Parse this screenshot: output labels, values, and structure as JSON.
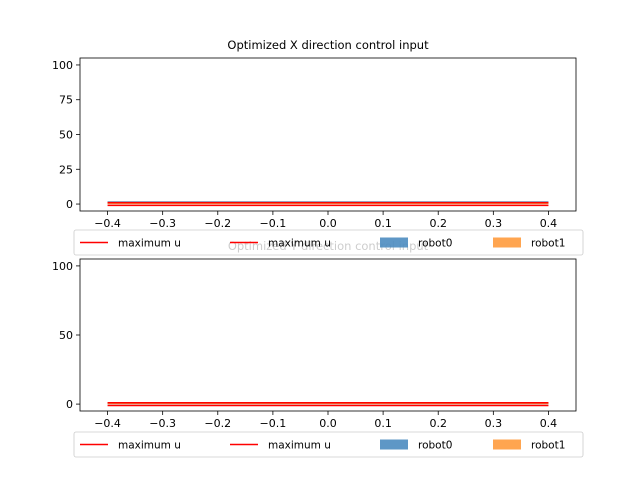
{
  "colors": {
    "maximum_u": "#ff0000",
    "robot0": "#4c8cc0",
    "robot1": "#ff9b3d"
  },
  "chart_data": [
    {
      "type": "bar",
      "title": "Optimized X direction control input",
      "xlim": [
        -0.45,
        0.45
      ],
      "ylim": [
        -5,
        105
      ],
      "xticks": [
        "−0.4",
        "−0.3",
        "−0.2",
        "−0.1",
        "0.0",
        "0.1",
        "0.2",
        "0.3",
        "0.4"
      ],
      "xtick_values": [
        -0.4,
        -0.3,
        -0.2,
        -0.1,
        0.0,
        0.1,
        0.2,
        0.3,
        0.4
      ],
      "yticks": [
        "0",
        "25",
        "50",
        "75",
        "100"
      ],
      "ytick_values": [
        0,
        25,
        50,
        75,
        100
      ],
      "legend": [
        "maximum u",
        "maximum u",
        "robot0",
        "robot1"
      ],
      "series": [
        {
          "name": "maximum u",
          "kind": "line",
          "x": [
            -0.4,
            0.4
          ],
          "y": [
            1,
            1
          ]
        },
        {
          "name": "maximum u",
          "kind": "line",
          "x": [
            -0.4,
            0.4
          ],
          "y": [
            -1,
            -1
          ]
        },
        {
          "name": "robot0",
          "kind": "bar",
          "x0": -0.4,
          "x1": 0.4,
          "value": 2
        },
        {
          "name": "robot1",
          "kind": "bar",
          "x0": -0.4,
          "x1": 0.4,
          "value": 1
        }
      ]
    },
    {
      "type": "bar",
      "title": "Optimized Y direction control input",
      "xlim": [
        -0.45,
        0.45
      ],
      "ylim": [
        -5,
        105
      ],
      "xticks": [
        "−0.4",
        "−0.3",
        "−0.2",
        "−0.1",
        "0.0",
        "0.1",
        "0.2",
        "0.3",
        "0.4"
      ],
      "xtick_values": [
        -0.4,
        -0.3,
        -0.2,
        -0.1,
        0.0,
        0.1,
        0.2,
        0.3,
        0.4
      ],
      "yticks": [
        "0",
        "50",
        "100"
      ],
      "ytick_values": [
        0,
        50,
        100
      ],
      "legend": [
        "maximum u",
        "maximum u",
        "robot0",
        "robot1"
      ],
      "series": [
        {
          "name": "maximum u",
          "kind": "line",
          "x": [
            -0.4,
            0.4
          ],
          "y": [
            1,
            1
          ]
        },
        {
          "name": "maximum u",
          "kind": "line",
          "x": [
            -0.4,
            0.4
          ],
          "y": [
            -1,
            -1
          ]
        },
        {
          "name": "robot0",
          "kind": "bar",
          "x0": -0.4,
          "x1": 0.4,
          "value": 1
        },
        {
          "name": "robot1",
          "kind": "bar",
          "x0": -0.4,
          "x1": 0.4,
          "value": 1
        }
      ]
    }
  ]
}
